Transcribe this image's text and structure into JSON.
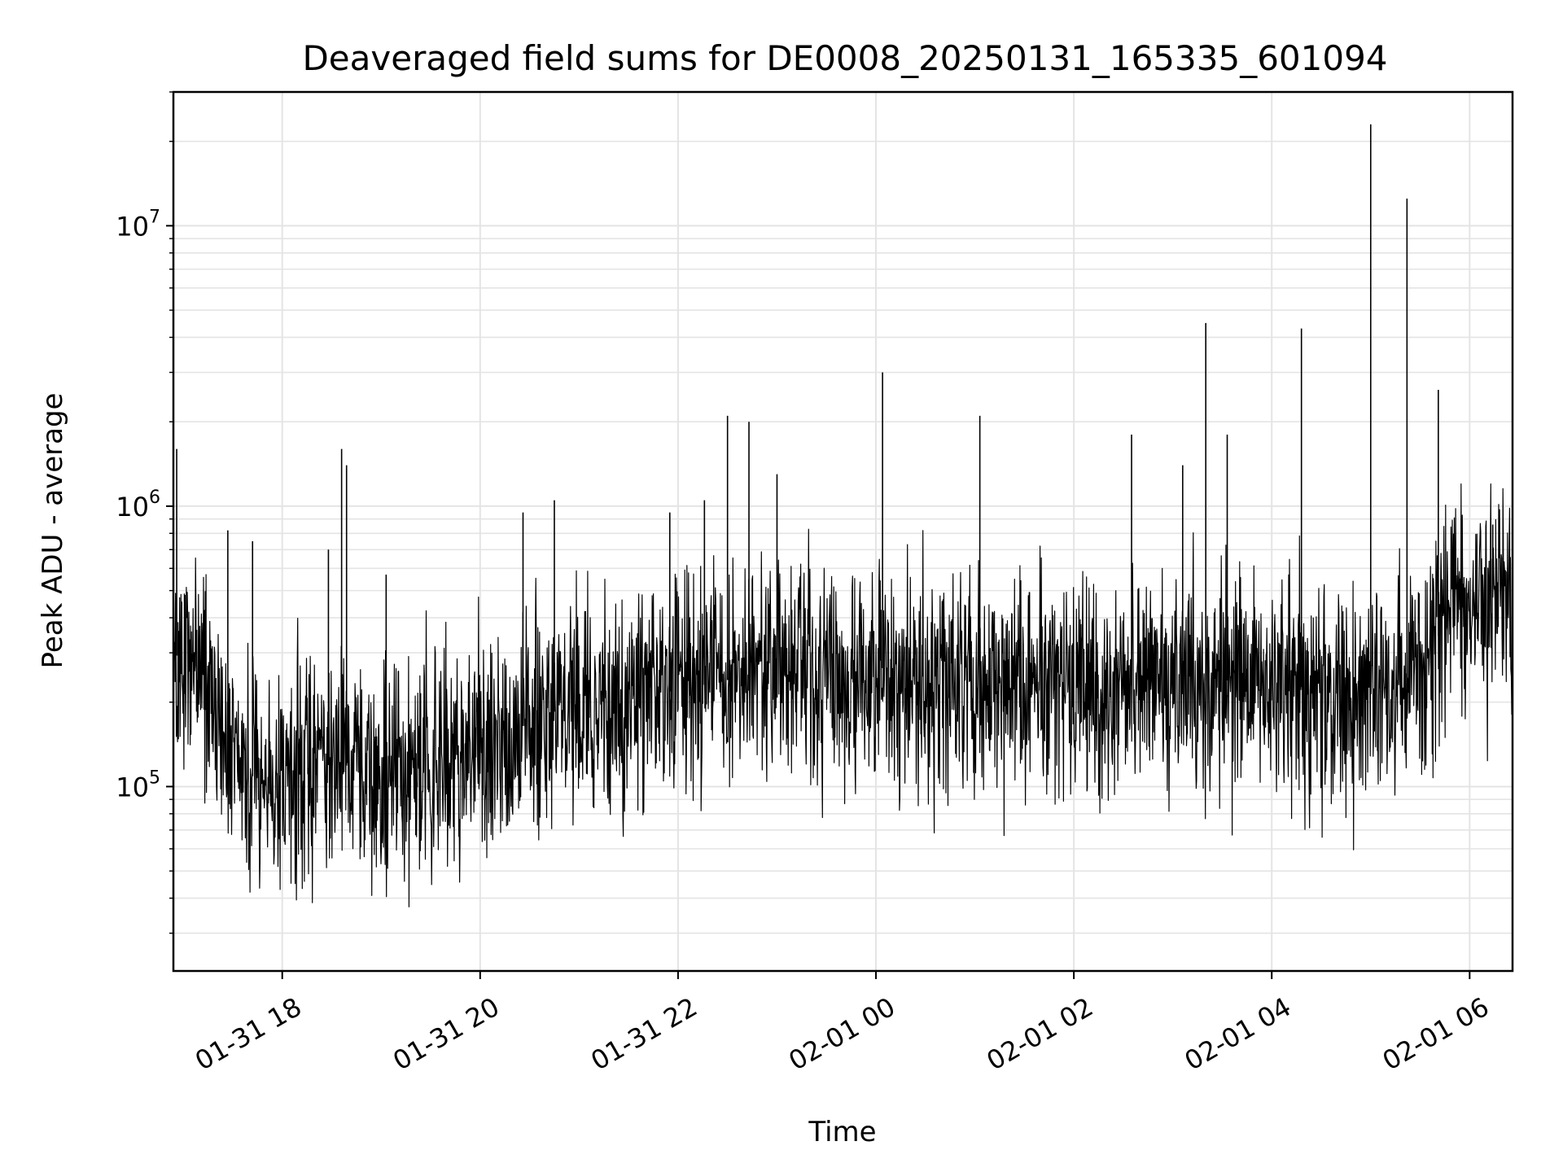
{
  "chart_data": {
    "type": "line",
    "title": "Deaveraged field sums for DE0008_20250131_165335_601094",
    "xlabel": "Time",
    "ylabel": "Peak ADU - average",
    "x_scale": "time",
    "y_scale": "log",
    "xlim": [
      "2025-01-31T16:54",
      "2025-02-01T06:26"
    ],
    "ylim": [
      22000,
      30000000
    ],
    "grid": true,
    "line_color": "#000000",
    "x_ticks": [
      {
        "value": "2025-01-31T18:00",
        "label": "01-31 18"
      },
      {
        "value": "2025-01-31T20:00",
        "label": "01-31 20"
      },
      {
        "value": "2025-01-31T22:00",
        "label": "01-31 22"
      },
      {
        "value": "2025-02-01T00:00",
        "label": "02-01 00"
      },
      {
        "value": "2025-02-01T02:00",
        "label": "02-01 02"
      },
      {
        "value": "2025-02-01T04:00",
        "label": "02-01 04"
      },
      {
        "value": "2025-02-01T06:00",
        "label": "02-01 06"
      }
    ],
    "y_ticks": [
      {
        "value": 100000,
        "base": "10",
        "exp": "5"
      },
      {
        "value": 1000000,
        "base": "10",
        "exp": "6"
      },
      {
        "value": 10000000,
        "base": "10",
        "exp": "7"
      }
    ],
    "series": [
      {
        "x": [
          "2025-01-31T16:54",
          "2025-01-31T17:00",
          "2025-01-31T17:10",
          "2025-01-31T17:20",
          "2025-01-31T17:30",
          "2025-01-31T17:40",
          "2025-01-31T17:50",
          "2025-01-31T18:00",
          "2025-01-31T18:15",
          "2025-01-31T18:30",
          "2025-01-31T18:45",
          "2025-01-31T19:00",
          "2025-01-31T19:15",
          "2025-01-31T19:30",
          "2025-01-31T19:45",
          "2025-01-31T20:00",
          "2025-01-31T20:15",
          "2025-01-31T20:30",
          "2025-01-31T20:45",
          "2025-01-31T21:00",
          "2025-01-31T21:15",
          "2025-01-31T21:30",
          "2025-01-31T21:45",
          "2025-01-31T22:00",
          "2025-01-31T22:15",
          "2025-01-31T22:30",
          "2025-01-31T22:45",
          "2025-01-31T23:00",
          "2025-01-31T23:15",
          "2025-01-31T23:30",
          "2025-01-31T23:45",
          "2025-02-01T00:00",
          "2025-02-01T00:15",
          "2025-02-01T00:30",
          "2025-02-01T00:45",
          "2025-02-01T01:00",
          "2025-02-01T01:15",
          "2025-02-01T01:30",
          "2025-02-01T01:45",
          "2025-02-01T02:00",
          "2025-02-01T02:15",
          "2025-02-01T02:30",
          "2025-02-01T02:45",
          "2025-02-01T03:00",
          "2025-02-01T03:15",
          "2025-02-01T03:30",
          "2025-02-01T03:45",
          "2025-02-01T04:00",
          "2025-02-01T04:15",
          "2025-02-01T04:30",
          "2025-02-01T04:45",
          "2025-02-01T05:00",
          "2025-02-01T05:15",
          "2025-02-01T05:30",
          "2025-02-01T05:45",
          "2025-02-01T06:00",
          "2025-02-01T06:15",
          "2025-02-01T06:26"
        ],
        "y": [
          300000,
          280000,
          260000,
          180000,
          120000,
          110000,
          105000,
          110000,
          115000,
          120000,
          118000,
          115000,
          112000,
          110000,
          115000,
          130000,
          150000,
          170000,
          185000,
          195000,
          205000,
          210000,
          215000,
          220000,
          230000,
          240000,
          245000,
          250000,
          255000,
          258000,
          260000,
          270000,
          250000,
          230000,
          225000,
          230000,
          235000,
          240000,
          235000,
          230000,
          225000,
          228000,
          232000,
          235000,
          238000,
          240000,
          235000,
          230000,
          228000,
          220000,
          215000,
          218000,
          222000,
          230000,
          400000,
          450000,
          500000,
          510000
        ]
      }
    ],
    "spikes": [
      {
        "x": "2025-01-31T16:56",
        "y": 1600000
      },
      {
        "x": "2025-01-31T17:27",
        "y": 820000
      },
      {
        "x": "2025-01-31T17:42",
        "y": 750000
      },
      {
        "x": "2025-01-31T18:28",
        "y": 700000
      },
      {
        "x": "2025-01-31T18:36",
        "y": 1600000
      },
      {
        "x": "2025-01-31T18:39",
        "y": 1400000
      },
      {
        "x": "2025-01-31T19:03",
        "y": 570000
      },
      {
        "x": "2025-01-31T20:26",
        "y": 950000
      },
      {
        "x": "2025-01-31T20:45",
        "y": 1050000
      },
      {
        "x": "2025-01-31T21:55",
        "y": 950000
      },
      {
        "x": "2025-01-31T22:16",
        "y": 1050000
      },
      {
        "x": "2025-01-31T22:30",
        "y": 2100000
      },
      {
        "x": "2025-01-31T22:43",
        "y": 2000000
      },
      {
        "x": "2025-01-31T23:00",
        "y": 1300000
      },
      {
        "x": "2025-02-01T00:04",
        "y": 3000000
      },
      {
        "x": "2025-02-01T01:03",
        "y": 2100000
      },
      {
        "x": "2025-02-01T02:35",
        "y": 1800000
      },
      {
        "x": "2025-02-01T03:06",
        "y": 1400000
      },
      {
        "x": "2025-02-01T03:20",
        "y": 4500000
      },
      {
        "x": "2025-02-01T03:33",
        "y": 1800000
      },
      {
        "x": "2025-02-01T04:18",
        "y": 4300000
      },
      {
        "x": "2025-02-01T05:00",
        "y": 23000000
      },
      {
        "x": "2025-02-01T05:22",
        "y": 12500000
      },
      {
        "x": "2025-02-01T05:41",
        "y": 2600000
      },
      {
        "x": "2025-02-01T06:14",
        "y": 860000
      }
    ]
  }
}
